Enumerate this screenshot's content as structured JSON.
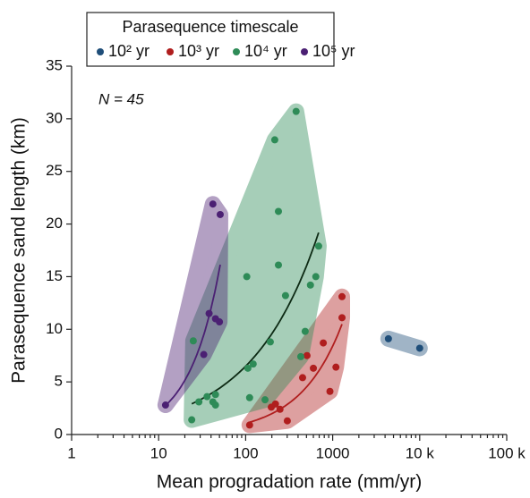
{
  "chart_data": {
    "type": "scatter",
    "title": "Parasequence timescale",
    "annotation": "N = 45",
    "x_label": "Mean progradation rate (mm/yr)",
    "y_label": "Parasequence sand length (km)",
    "log_x": true,
    "legend": "top",
    "xlim": [
      1,
      100000
    ],
    "ylim": [
      0,
      35
    ],
    "xticks": [
      1,
      10,
      100,
      1000,
      {
        "value": 10000,
        "label": "10 k"
      },
      {
        "value": 100000,
        "label": "100 k"
      }
    ],
    "yticks": [
      0,
      5,
      10,
      15,
      20,
      25,
      30,
      35
    ],
    "series": [
      {
        "name": "10² yr",
        "color": "#1f4e79",
        "fit_line": false,
        "x": [
          4370,
          10000
        ],
        "values": [
          9.1,
          8.2
        ]
      },
      {
        "name": "10³ yr",
        "color": "#b01e1e",
        "fit_line": true,
        "x": [
          111,
          197,
          220,
          248,
          301,
          451,
          507,
          600,
          780,
          930,
          1090,
          1280,
          1280
        ],
        "values": [
          0.9,
          2.6,
          2.9,
          2.4,
          1.3,
          5.4,
          7.5,
          6.3,
          8.7,
          4.1,
          6.4,
          11.1,
          13.1
        ]
      },
      {
        "name": "10⁴ yr",
        "color": "#2e8b57",
        "fit_line": true,
        "x": [
          24,
          25,
          29,
          36,
          42,
          45,
          45,
          103,
          106,
          122,
          111,
          167,
          192,
          287,
          216,
          238,
          238,
          380,
          430,
          483,
          555,
          640,
          690
        ],
        "values": [
          1.4,
          8.9,
          3.1,
          3.6,
          3.1,
          2.8,
          3.8,
          15.0,
          6.3,
          6.7,
          3.5,
          3.3,
          8.8,
          13.2,
          28.0,
          21.2,
          16.1,
          30.7,
          7.4,
          9.8,
          14.2,
          15.0,
          17.9
        ]
      },
      {
        "name": "10⁵ yr",
        "color": "#4b2073",
        "fit_line": true,
        "x": [
          12,
          33,
          38,
          42,
          51,
          45,
          50
        ],
        "values": [
          2.8,
          7.6,
          11.5,
          21.9,
          20.9,
          11.0,
          10.7
        ]
      }
    ]
  }
}
